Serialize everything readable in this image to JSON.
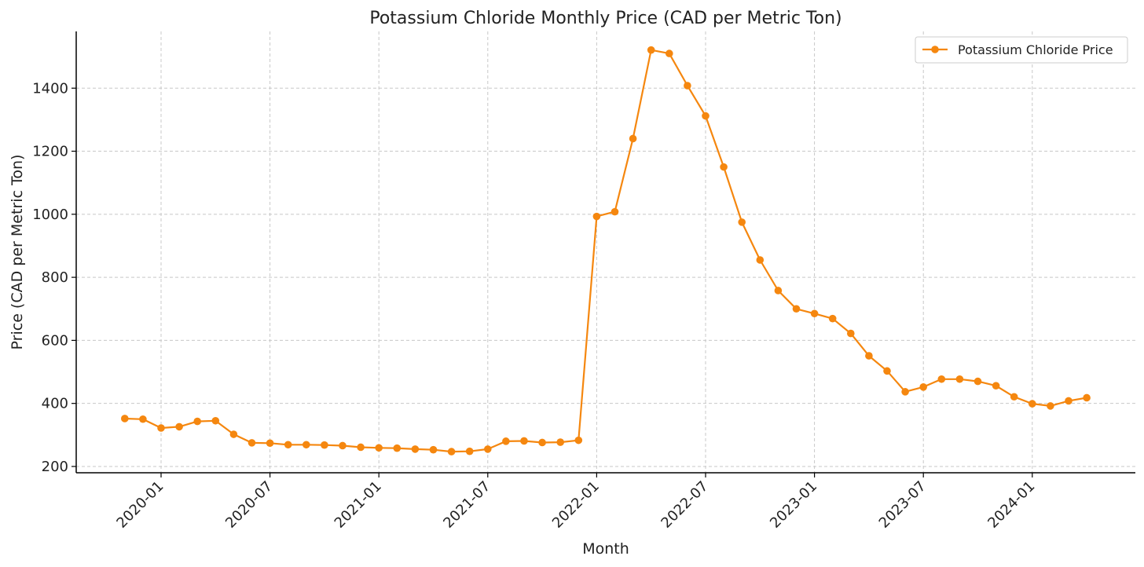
{
  "chart_data": {
    "type": "line",
    "title": "Potassium Chloride Monthly Price (CAD per Metric Ton)",
    "xlabel": "Month",
    "ylabel": "Price (CAD per Metric Ton)",
    "ylim": [
      180,
      1580
    ],
    "yticks": [
      200,
      400,
      600,
      800,
      1000,
      1200,
      1400
    ],
    "xticks": [
      "2020-01",
      "2020-07",
      "2021-01",
      "2021-07",
      "2022-01",
      "2022-07",
      "2023-01",
      "2023-07",
      "2024-01"
    ],
    "grid": true,
    "legend": {
      "position": "top-right",
      "entries": [
        "Potassium Chloride Price"
      ]
    },
    "color": "#f5870f",
    "series": [
      {
        "name": "Potassium Chloride Price",
        "x": [
          "2019-11",
          "2019-12",
          "2020-01",
          "2020-02",
          "2020-03",
          "2020-04",
          "2020-05",
          "2020-06",
          "2020-07",
          "2020-08",
          "2020-09",
          "2020-10",
          "2020-11",
          "2020-12",
          "2021-01",
          "2021-02",
          "2021-03",
          "2021-04",
          "2021-05",
          "2021-06",
          "2021-07",
          "2021-08",
          "2021-09",
          "2021-10",
          "2021-11",
          "2021-12",
          "2022-01",
          "2022-02",
          "2022-03",
          "2022-04",
          "2022-05",
          "2022-06",
          "2022-07",
          "2022-08",
          "2022-09",
          "2022-10",
          "2022-11",
          "2022-12",
          "2023-01",
          "2023-02",
          "2023-03",
          "2023-04",
          "2023-05",
          "2023-06",
          "2023-07",
          "2023-08",
          "2023-09",
          "2023-10",
          "2023-11",
          "2023-12",
          "2024-01",
          "2024-02",
          "2024-03",
          "2024-04"
        ],
        "values": [
          352,
          350,
          322,
          326,
          343,
          345,
          302,
          275,
          274,
          269,
          269,
          268,
          266,
          261,
          259,
          258,
          255,
          253,
          247,
          248,
          255,
          280,
          281,
          276,
          277,
          283,
          993,
          1008,
          1240,
          1521,
          1510,
          1408,
          1312,
          1150,
          975,
          855,
          758,
          700,
          685,
          669,
          622,
          551,
          503,
          437,
          452,
          477,
          477,
          470,
          456,
          421,
          399,
          392,
          408,
          418
        ]
      }
    ]
  }
}
